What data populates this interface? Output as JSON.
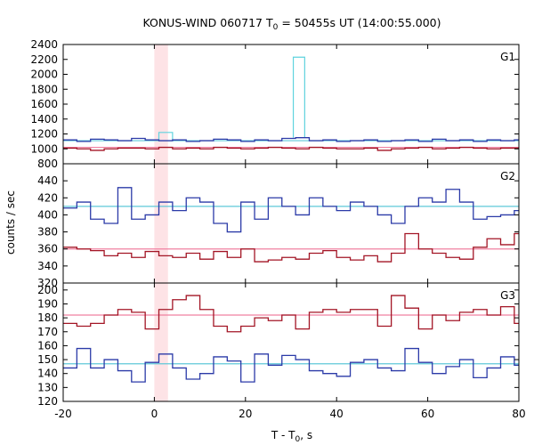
{
  "title": "KONUS-WIND 060717 T",
  "title_sub": "0",
  "title_rest": " = 50455s UT (14:00:55.000)",
  "ylabel": "counts / sec",
  "xlabel_main": "T - T",
  "xlabel_sub": "0",
  "xlabel_rest": ", s",
  "colors": {
    "bg_blue": "#2b3aa8",
    "bg_red": "#a31525",
    "bg_blue_line": "#5fc8d8",
    "bg_red_line": "#f080a0",
    "burst_cyan": "#5fd3de",
    "highlight": "#fde3e6"
  },
  "chart_data": {
    "type": "line",
    "step": true,
    "xlim": [
      -20,
      80
    ],
    "x_ticks": [
      -20,
      0,
      20,
      40,
      60,
      80
    ],
    "highlight_band": [
      0,
      3
    ],
    "bin_edges": [
      -20,
      -17,
      -14,
      -11,
      -8,
      -5,
      -2,
      1,
      4,
      7,
      10,
      13,
      16,
      19,
      22,
      25,
      28,
      31,
      34,
      37,
      40,
      43,
      46,
      49,
      52,
      55,
      58,
      61,
      64,
      67,
      70,
      73,
      76,
      79,
      80
    ],
    "panels": [
      {
        "name": "G1",
        "ylim": [
          800,
          2400
        ],
        "y_ticks": [
          800,
          1000,
          1200,
          1400,
          1600,
          1800,
          2000,
          2200,
          2400
        ],
        "baseline_blue": 1110,
        "baseline_red": 1020,
        "series": [
          {
            "color_key": "bg_red",
            "values": [
              1010,
              1000,
              980,
              1000,
              1010,
              1010,
              1000,
              1020,
              1000,
              1010,
              1000,
              1020,
              1010,
              1000,
              1010,
              1020,
              1010,
              1000,
              1020,
              1010,
              1000,
              1000,
              1010,
              980,
              1000,
              1010,
              1020,
              1000,
              1010,
              1020,
              1010,
              1000,
              1010,
              1010
            ]
          },
          {
            "color_key": "bg_blue",
            "values": [
              1120,
              1100,
              1130,
              1120,
              1110,
              1140,
              1120,
              1110,
              1120,
              1100,
              1110,
              1130,
              1120,
              1100,
              1120,
              1110,
              1140,
              1150,
              1110,
              1120,
              1100,
              1110,
              1120,
              1100,
              1110,
              1120,
              1100,
              1130,
              1110,
              1120,
              1100,
              1120,
              1110,
              1120
            ]
          }
        ],
        "spike": [
          {
            "x0": 1,
            "x1": 4,
            "top": 1220,
            "base": 1110
          },
          {
            "x0": 30.5,
            "x1": 33,
            "top": 2230,
            "base": 1150
          }
        ]
      },
      {
        "name": "G2",
        "ylim": [
          320,
          460
        ],
        "y_ticks": [
          320,
          340,
          360,
          380,
          400,
          420,
          440
        ],
        "baseline_blue": 410,
        "baseline_red": 360,
        "series": [
          {
            "color_key": "bg_blue",
            "values": [
              408,
              415,
              395,
              390,
              432,
              395,
              400,
              415,
              405,
              420,
              415,
              390,
              380,
              415,
              395,
              420,
              410,
              400,
              420,
              410,
              405,
              415,
              410,
              400,
              390,
              410,
              420,
              415,
              430,
              415,
              395,
              398,
              400,
              405
            ]
          },
          {
            "color_key": "bg_red",
            "values": [
              362,
              360,
              358,
              352,
              355,
              350,
              357,
              352,
              350,
              355,
              348,
              357,
              350,
              360,
              345,
              347,
              350,
              348,
              355,
              358,
              350,
              347,
              352,
              345,
              355,
              378,
              360,
              355,
              350,
              348,
              362,
              372,
              365,
              378
            ]
          }
        ]
      },
      {
        "name": "G3",
        "ylim": [
          120,
          205
        ],
        "y_ticks": [
          120,
          130,
          140,
          150,
          160,
          170,
          180,
          190,
          200
        ],
        "baseline_blue": 147,
        "baseline_red": 182,
        "series": [
          {
            "color_key": "bg_red",
            "values": [
              176,
              174,
              176,
              182,
              186,
              184,
              172,
              186,
              193,
              196,
              186,
              174,
              170,
              174,
              180,
              178,
              182,
              172,
              184,
              186,
              184,
              186,
              186,
              174,
              196,
              187,
              172,
              182,
              178,
              184,
              186,
              182,
              188,
              176
            ]
          },
          {
            "color_key": "bg_blue",
            "values": [
              144,
              158,
              144,
              150,
              142,
              134,
              148,
              154,
              144,
              136,
              140,
              152,
              149,
              134,
              154,
              146,
              153,
              150,
              142,
              140,
              138,
              148,
              150,
              144,
              142,
              158,
              148,
              140,
              145,
              150,
              137,
              144,
              152,
              146
            ]
          }
        ]
      }
    ]
  }
}
